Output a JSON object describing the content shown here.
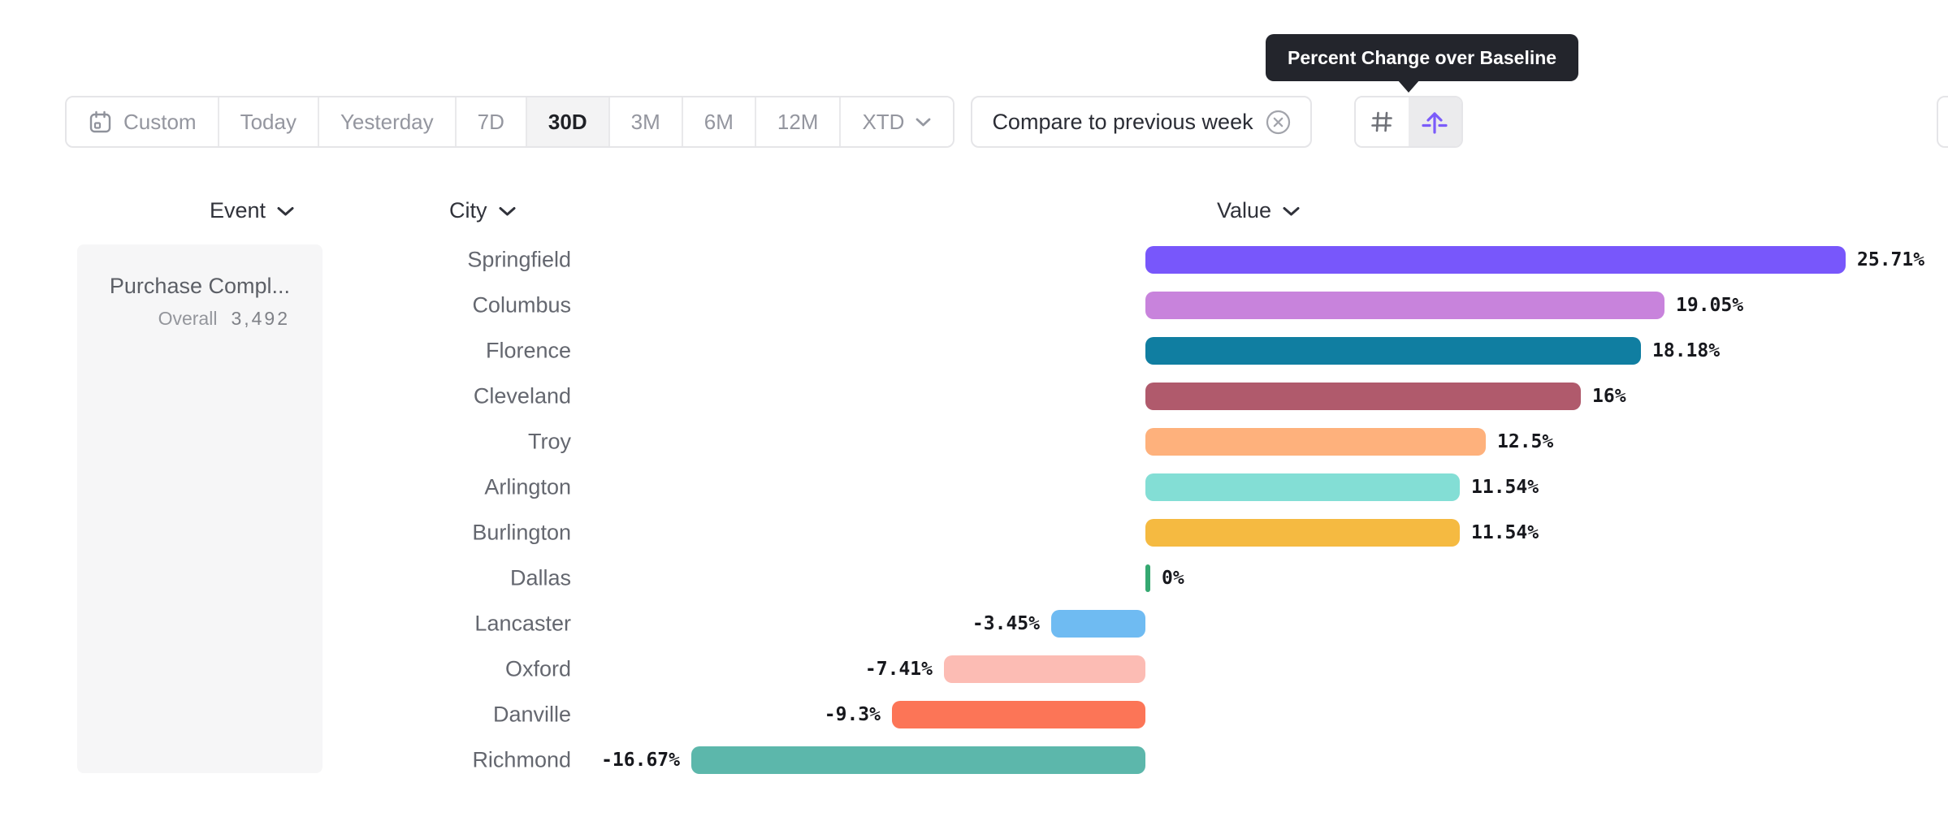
{
  "tooltip": {
    "text": "Percent Change over Baseline"
  },
  "toolbar": {
    "date_ranges": [
      {
        "label": "Custom",
        "icon": "calendar"
      },
      {
        "label": "Today"
      },
      {
        "label": "Yesterday"
      },
      {
        "label": "7D"
      },
      {
        "label": "30D"
      },
      {
        "label": "3M"
      },
      {
        "label": "6M"
      },
      {
        "label": "12M"
      },
      {
        "label": "XTD",
        "chevron": true
      }
    ],
    "selected_range": "30D",
    "compare_label": "Compare to previous week",
    "view_toggles": [
      {
        "name": "grid-hash",
        "selected": false
      },
      {
        "name": "baseline-arrow",
        "selected": true
      }
    ]
  },
  "columns": {
    "event": "Event",
    "city": "City",
    "value": "Value"
  },
  "event_panel": {
    "title": "Purchase Compl...",
    "metric_label": "Overall",
    "metric_value": "3,492"
  },
  "chart_data": {
    "type": "bar",
    "orientation": "horizontal",
    "categories": [
      "Springfield",
      "Columbus",
      "Florence",
      "Cleveland",
      "Troy",
      "Arlington",
      "Burlington",
      "Dallas",
      "Lancaster",
      "Oxford",
      "Danville",
      "Richmond"
    ],
    "values": [
      25.71,
      19.05,
      18.18,
      16,
      12.5,
      11.54,
      11.54,
      0,
      -3.45,
      -7.41,
      -9.3,
      -16.67
    ],
    "value_labels": [
      "25.71%",
      "19.05%",
      "18.18%",
      "16%",
      "12.5%",
      "11.54%",
      "11.54%",
      "0%",
      "-3.45%",
      "-7.41%",
      "-9.3%",
      "-16.67%"
    ],
    "bar_colors": [
      "#7857fb",
      "#c883dc",
      "#107ea1",
      "#b05a6c",
      "#feb17c",
      "#83ded5",
      "#f5ba41",
      "#35a871",
      "#6fbbf2",
      "#fcbcb4",
      "#fc7557",
      "#5cb7ab"
    ],
    "unit": "%",
    "xlim": [
      -16.67,
      25.71
    ],
    "baseline": 0,
    "grid": false,
    "legend": false
  },
  "colors": {
    "accent_purple": "#7b5bfa",
    "border": "#e5e5e8",
    "selected_bg": "#f3f3f4",
    "tooltip_bg": "#23252c",
    "zero_tick_green": "#35a871"
  }
}
